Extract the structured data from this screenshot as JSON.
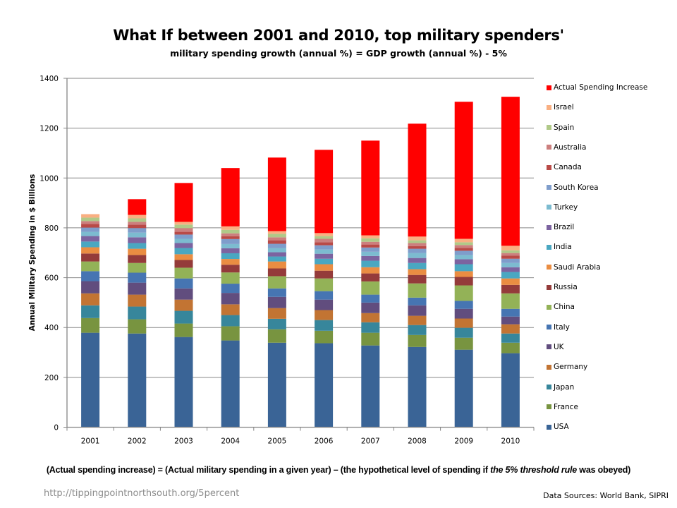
{
  "chart_data": {
    "type": "bar",
    "stacked": true,
    "title": "What If between 2001 and 2010, top military spenders'",
    "subtitle": "military spending growth (annual %) = GDP growth (annual %) - 5%",
    "xlabel": "",
    "ylabel": "Annual Military Spending in $ Billions",
    "ylim": [
      0,
      1400
    ],
    "yticks": [
      0,
      200,
      400,
      600,
      800,
      1000,
      1200,
      1400
    ],
    "grid": true,
    "legend_position": "right",
    "categories": [
      "2001",
      "2002",
      "2003",
      "2004",
      "2005",
      "2006",
      "2007",
      "2008",
      "2009",
      "2010"
    ],
    "series": [
      {
        "name": "USA",
        "color": "#3A6496",
        "values": [
          379,
          376,
          362,
          348,
          339,
          337,
          328,
          322,
          311,
          297
        ]
      },
      {
        "name": "France",
        "color": "#789440",
        "values": [
          59,
          57,
          54,
          57,
          54,
          50,
          51,
          48,
          48,
          42
        ]
      },
      {
        "name": "Japan",
        "color": "#37869B",
        "values": [
          51,
          51,
          51,
          45,
          42,
          43,
          42,
          40,
          40,
          37
        ]
      },
      {
        "name": "Germany",
        "color": "#C27433",
        "values": [
          48,
          48,
          45,
          43,
          43,
          40,
          37,
          37,
          37,
          37
        ]
      },
      {
        "name": "UK",
        "color": "#614D7E",
        "values": [
          49,
          48,
          45,
          46,
          45,
          42,
          42,
          42,
          39,
          31
        ]
      },
      {
        "name": "Italy",
        "color": "#4675B2",
        "values": [
          40,
          40,
          40,
          37,
          34,
          34,
          32,
          31,
          32,
          31
        ]
      },
      {
        "name": "China",
        "color": "#93B257",
        "values": [
          39,
          39,
          43,
          45,
          49,
          51,
          53,
          57,
          62,
          62
        ]
      },
      {
        "name": "Russia",
        "color": "#943B3A",
        "values": [
          32,
          32,
          31,
          31,
          31,
          31,
          32,
          34,
          34,
          34
        ]
      },
      {
        "name": "Saudi Arabia",
        "color": "#EA8D42",
        "values": [
          25,
          25,
          23,
          23,
          28,
          26,
          25,
          23,
          23,
          26
        ]
      },
      {
        "name": "India",
        "color": "#4AA7C1",
        "values": [
          23,
          23,
          25,
          23,
          20,
          22,
          26,
          25,
          28,
          26
        ]
      },
      {
        "name": "Brazil",
        "color": "#7C63A0",
        "values": [
          22,
          23,
          20,
          20,
          17,
          20,
          19,
          20,
          20,
          19
        ]
      },
      {
        "name": "Turkey",
        "color": "#7CBBD0",
        "values": [
          17,
          19,
          17,
          17,
          17,
          17,
          17,
          20,
          17,
          17
        ]
      },
      {
        "name": "South Korea",
        "color": "#7F9DCB",
        "values": [
          17,
          18,
          17,
          20,
          17,
          17,
          17,
          17,
          17,
          17
        ]
      },
      {
        "name": "Canada",
        "color": "#B94A47",
        "values": [
          15,
          14,
          11,
          11,
          14,
          12,
          12,
          11,
          11,
          12
        ]
      },
      {
        "name": "Australia",
        "color": "#CC7F7E",
        "values": [
          11,
          11,
          15,
          12,
          12,
          14,
          11,
          12,
          12,
          11
        ]
      },
      {
        "name": "Spain",
        "color": "#B0C988",
        "values": [
          14,
          14,
          14,
          14,
          14,
          11,
          14,
          11,
          11,
          11
        ]
      },
      {
        "name": "Israel",
        "color": "#F9AF82",
        "values": [
          14,
          14,
          11,
          14,
          11,
          12,
          12,
          15,
          14,
          18
        ]
      },
      {
        "name": "Actual Spending Increase",
        "color": "#FF0000",
        "values": [
          0,
          63,
          156,
          234,
          295,
          334,
          380,
          453,
          550,
          598
        ]
      }
    ],
    "legend_order": [
      "Actual Spending Increase",
      "Israel",
      "Spain",
      "Australia",
      "Canada",
      "South Korea",
      "Turkey",
      "Brazil",
      "India",
      "Saudi Arabia",
      "Russia",
      "China",
      "Italy",
      "UK",
      "Germany",
      "Japan",
      "France",
      "USA"
    ]
  },
  "footnote": {
    "part1": "(Actual spending increase) = (Actual military spending in a given year) – (the hypothetical level of spending if ",
    "italic": "the 5% threshold rule",
    "part2": " was obeyed)"
  },
  "url": "http://tippingpointnorthsouth.org/5percent",
  "source": "Data Sources: World Bank, SIPRI"
}
